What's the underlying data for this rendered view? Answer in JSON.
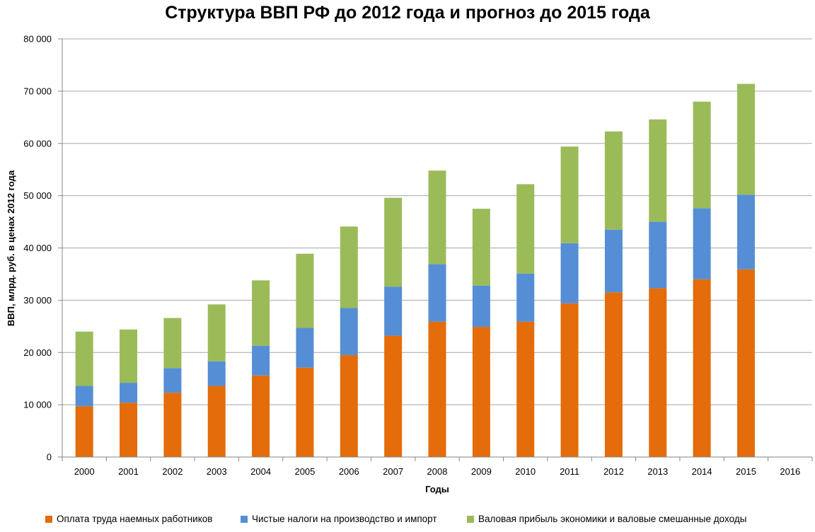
{
  "chart_data": {
    "type": "bar",
    "stacked": true,
    "title": "Структура ВВП РФ до 2012 года и прогноз до 2015 года",
    "xlabel": "Годы",
    "ylabel": "ВВП, млрд. руб. в ценах 2012 года",
    "ylim": [
      0,
      80000
    ],
    "yticks": [
      "0",
      "10 000",
      "20 000",
      "30 000",
      "40 000",
      "50 000",
      "60 000",
      "70 000",
      "80 000"
    ],
    "ytick_values": [
      0,
      10000,
      20000,
      30000,
      40000,
      50000,
      60000,
      70000,
      80000
    ],
    "grid": true,
    "legend_position": "bottom",
    "categories": [
      "2000",
      "2001",
      "2002",
      "2003",
      "2004",
      "2005",
      "2006",
      "2007",
      "2008",
      "2009",
      "2010",
      "2011",
      "2012",
      "2013",
      "2014",
      "2015",
      "2016"
    ],
    "series": [
      {
        "name": "Оплата труда наемных работников",
        "color": "#E46C0A",
        "values": [
          9700,
          10400,
          12300,
          13600,
          15600,
          17100,
          19500,
          23200,
          25900,
          24900,
          25900,
          29400,
          31500,
          32300,
          34000,
          35900,
          null
        ]
      },
      {
        "name": "Чистые налоги на производство и импорт",
        "color": "#558ED5",
        "values": [
          3900,
          3800,
          4700,
          4700,
          5700,
          7600,
          9000,
          9400,
          11000,
          7900,
          9200,
          11500,
          12000,
          12700,
          13600,
          14300,
          null
        ]
      },
      {
        "name": "Валовая прибыль экономики и валовые смешанные доходы",
        "color": "#9BBB59",
        "values": [
          10400,
          10200,
          9600,
          10900,
          12500,
          14200,
          15600,
          17000,
          17900,
          14700,
          17100,
          18500,
          18800,
          19600,
          20400,
          21200,
          null
        ]
      }
    ]
  },
  "colors": {
    "gridline": "#A6A6A6",
    "axis": "#868686"
  }
}
